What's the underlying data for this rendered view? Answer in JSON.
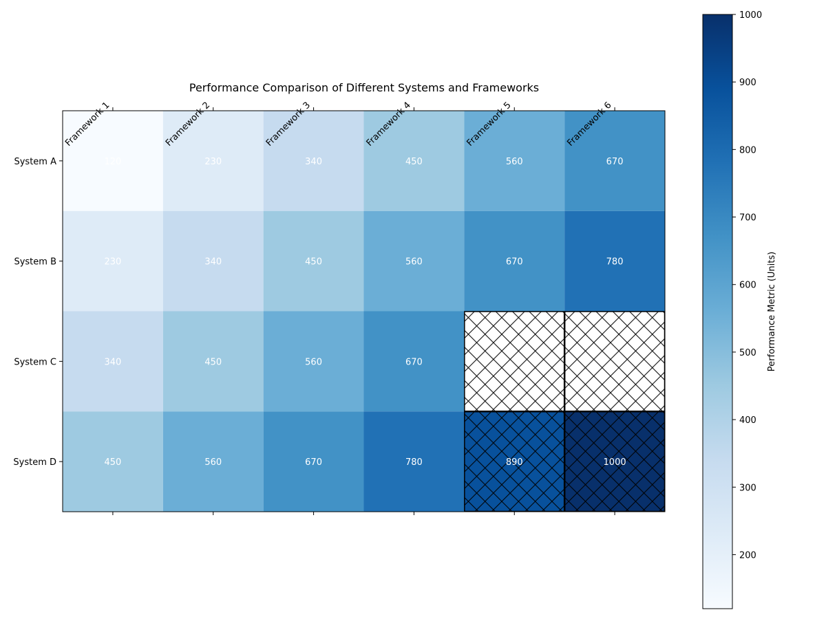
{
  "chart_data": {
    "type": "heatmap",
    "title": "Performance Comparison of Different Systems and Frameworks",
    "columns": [
      "Framework 1",
      "Framework 2",
      "Framework 3",
      "Framework 4",
      "Framework 5",
      "Framework 6"
    ],
    "rows": [
      "System A",
      "System B",
      "System C",
      "System D"
    ],
    "values": [
      [
        120,
        230,
        340,
        450,
        560,
        670
      ],
      [
        230,
        340,
        450,
        560,
        670,
        780
      ],
      [
        340,
        450,
        560,
        670,
        null,
        null
      ],
      [
        450,
        560,
        670,
        780,
        890,
        1000
      ]
    ],
    "hatched_cells": [
      [
        2,
        4
      ],
      [
        2,
        5
      ],
      [
        3,
        4
      ],
      [
        3,
        5
      ]
    ],
    "colormap": "Blues",
    "colorbar": {
      "label": "Performance Metric (Units)",
      "range": [
        120,
        1000
      ],
      "ticks": [
        200,
        300,
        400,
        500,
        600,
        700,
        800,
        900,
        1000
      ]
    },
    "cell_label_color": "#ffffff"
  }
}
